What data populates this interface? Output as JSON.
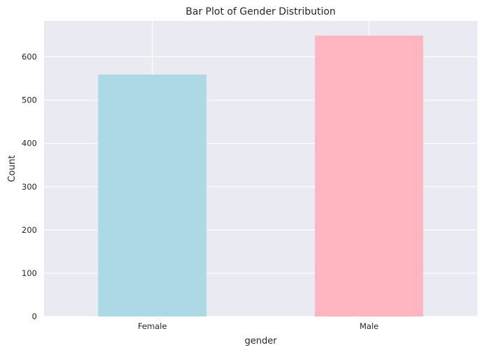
{
  "chart_data": {
    "type": "bar",
    "title": "Bar Plot of Gender Distribution",
    "xlabel": "gender",
    "ylabel": "Count",
    "categories": [
      "Female",
      "Male"
    ],
    "values": [
      559,
      649
    ],
    "colors": [
      "#add8e6",
      "#ffb6c1"
    ],
    "ylim": [
      0,
      683
    ],
    "yticks": [
      0,
      100,
      200,
      300,
      400,
      500,
      600
    ],
    "grid": true,
    "plot_background": "#eaeaf2",
    "grid_color": "#ffffff"
  }
}
